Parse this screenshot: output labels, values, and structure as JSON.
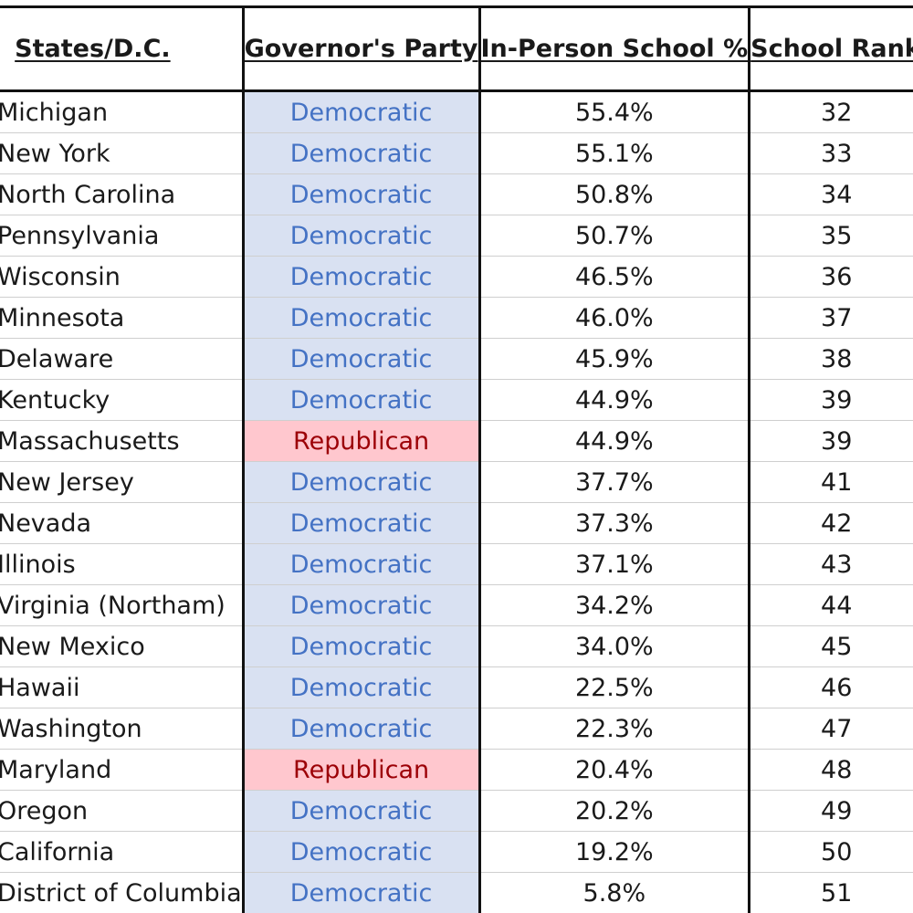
{
  "headers": {
    "state": "States/D.C.",
    "party": "Governor's Party",
    "pct": "In-Person School %",
    "rank": "School Rank"
  },
  "colors": {
    "democratic_fill": "#d9e1f2",
    "democratic_text": "#4472c4",
    "republican_fill": "#ffc7ce",
    "republican_text": "#9c0006"
  },
  "rows": [
    {
      "state": "Michigan",
      "party": "Democratic",
      "pct": "55.4%",
      "rank": "32"
    },
    {
      "state": "New York",
      "party": "Democratic",
      "pct": "55.1%",
      "rank": "33"
    },
    {
      "state": "North Carolina",
      "party": "Democratic",
      "pct": "50.8%",
      "rank": "34"
    },
    {
      "state": "Pennsylvania",
      "party": "Democratic",
      "pct": "50.7%",
      "rank": "35"
    },
    {
      "state": "Wisconsin",
      "party": "Democratic",
      "pct": "46.5%",
      "rank": "36"
    },
    {
      "state": "Minnesota",
      "party": "Democratic",
      "pct": "46.0%",
      "rank": "37"
    },
    {
      "state": "Delaware",
      "party": "Democratic",
      "pct": "45.9%",
      "rank": "38"
    },
    {
      "state": "Kentucky",
      "party": "Democratic",
      "pct": "44.9%",
      "rank": "39"
    },
    {
      "state": "Massachusetts",
      "party": "Republican",
      "pct": "44.9%",
      "rank": "39"
    },
    {
      "state": "New Jersey",
      "party": "Democratic",
      "pct": "37.7%",
      "rank": "41"
    },
    {
      "state": "Nevada",
      "party": "Democratic",
      "pct": "37.3%",
      "rank": "42"
    },
    {
      "state": "Illinois",
      "party": "Democratic",
      "pct": "37.1%",
      "rank": "43"
    },
    {
      "state": "Virginia (Northam)",
      "party": "Democratic",
      "pct": "34.2%",
      "rank": "44"
    },
    {
      "state": "New Mexico",
      "party": "Democratic",
      "pct": "34.0%",
      "rank": "45"
    },
    {
      "state": "Hawaii",
      "party": "Democratic",
      "pct": "22.5%",
      "rank": "46"
    },
    {
      "state": "Washington",
      "party": "Democratic",
      "pct": "22.3%",
      "rank": "47"
    },
    {
      "state": "Maryland",
      "party": "Republican",
      "pct": "20.4%",
      "rank": "48"
    },
    {
      "state": "Oregon",
      "party": "Democratic",
      "pct": "20.2%",
      "rank": "49"
    },
    {
      "state": "California",
      "party": "Democratic",
      "pct": "19.2%",
      "rank": "50"
    },
    {
      "state": "District of Columbia",
      "party": "Democratic",
      "pct": "5.8%",
      "rank": "51"
    }
  ]
}
